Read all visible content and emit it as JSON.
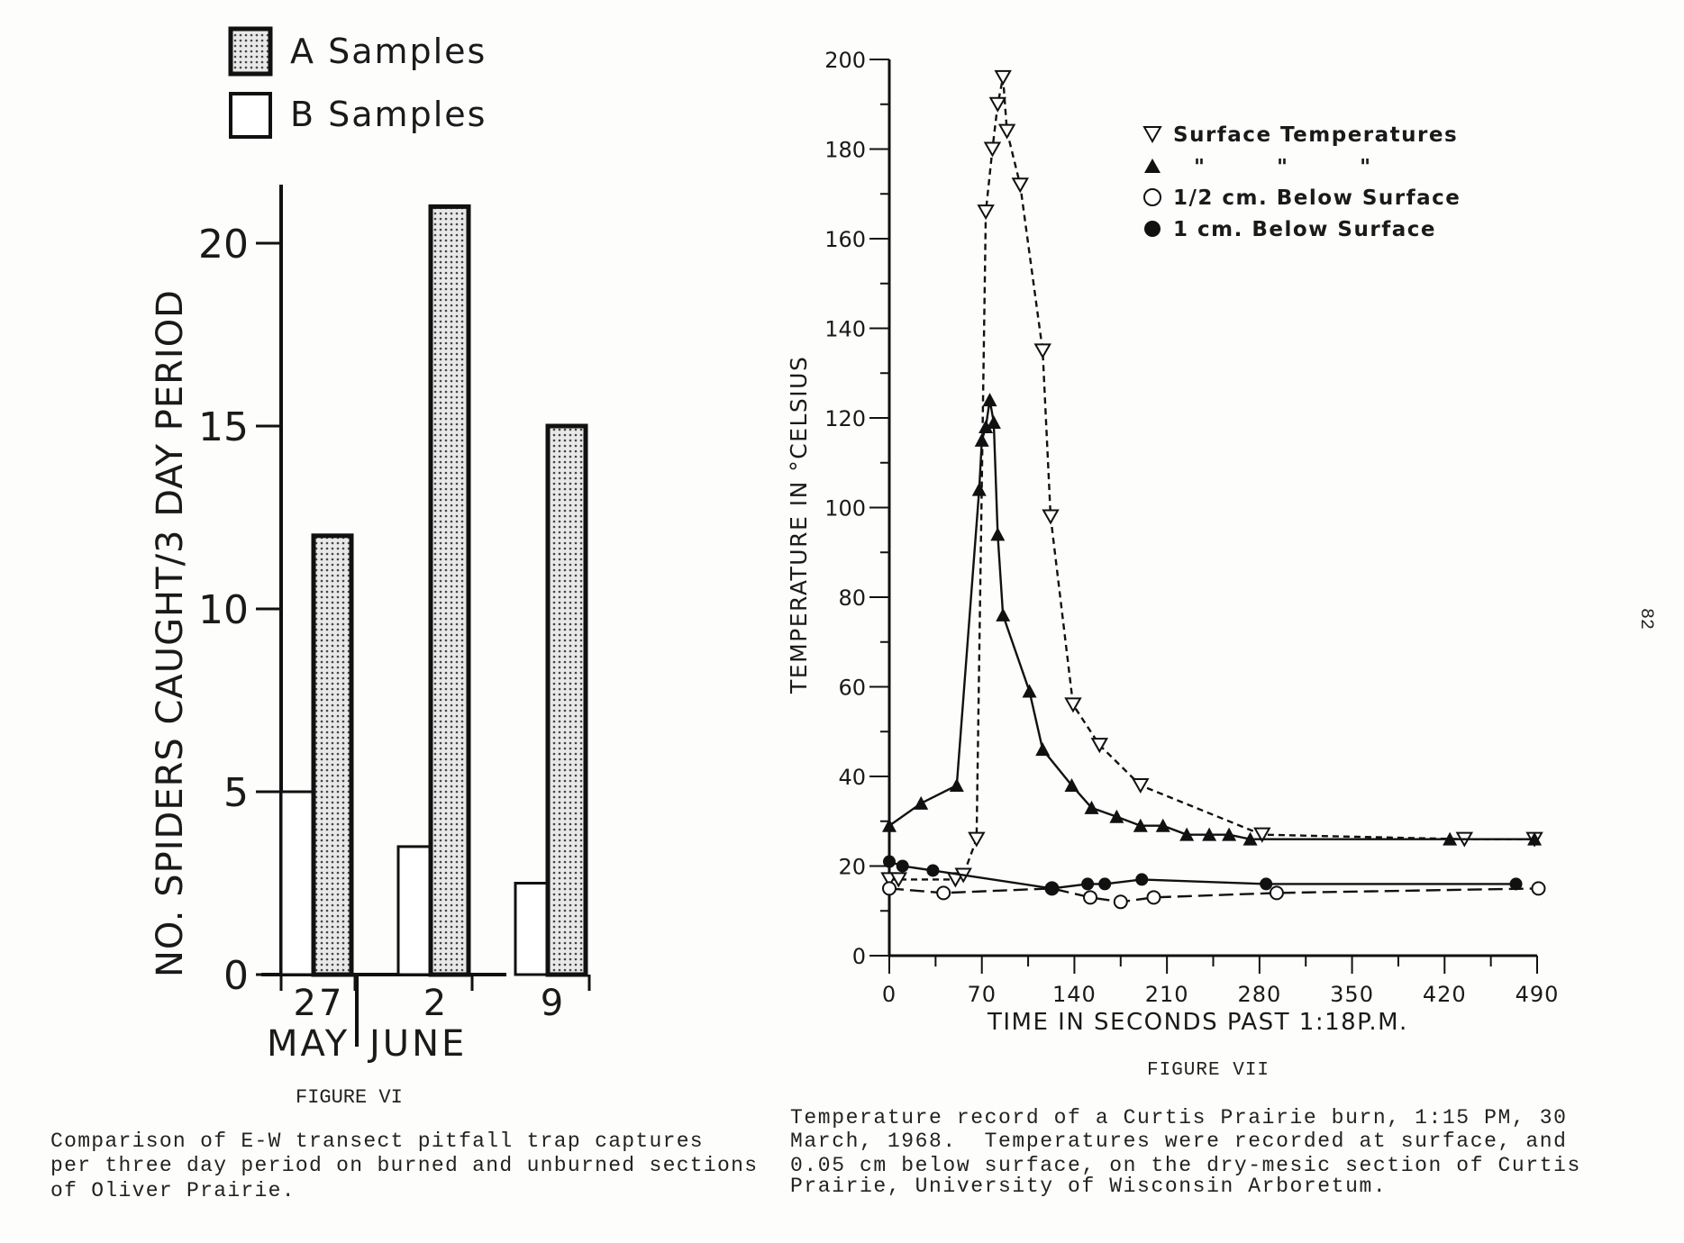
{
  "page_number": "82",
  "chart_data": [
    {
      "type": "bar",
      "figure_label": "FIGURE VI",
      "caption": [
        "Comparison of E-W transect pitfall trap captures",
        "per three day period on burned and unburned sections",
        "of Oliver Prairie."
      ],
      "ylabel": "NO. SPIDERS CAUGHT/3 DAY PERIOD",
      "ylim": [
        0,
        22
      ],
      "yticks": [
        0,
        5,
        10,
        15,
        20
      ],
      "categories": [
        "27",
        "2",
        "9"
      ],
      "month_labels": [
        "MAY",
        "JUNE"
      ],
      "series": [
        {
          "name": "A Samples",
          "pattern": "stippled",
          "values": [
            12,
            21,
            15
          ]
        },
        {
          "name": "B Samples",
          "pattern": "open",
          "values": [
            5,
            3.5,
            2.5
          ]
        }
      ],
      "legend": [
        "A Samples",
        "B Samples"
      ],
      "legend_position": "top"
    },
    {
      "type": "line",
      "figure_label": "FIGURE VII",
      "caption": [
        "Temperature record of a Curtis Prairie burn, 1:15 PM, 30",
        "March, 1968.  Temperatures were recorded at surface, and",
        "0.05 cm below surface, on the dry-mesic section of Curtis",
        "Prairie, University of Wisconsin Arboretum."
      ],
      "xlabel": "TIME IN SECONDS PAST 1:18P.M.",
      "ylabel": "TEMPERATURE IN °CELSIUS",
      "xlim": [
        0,
        490
      ],
      "ylim": [
        0,
        200
      ],
      "xticks": [
        0,
        70,
        140,
        210,
        280,
        350,
        420,
        490
      ],
      "yticks": [
        0,
        20,
        40,
        60,
        80,
        100,
        120,
        140,
        160,
        180,
        200
      ],
      "legend_position": "top-right",
      "legend": [
        "Surface Temperatures",
        "\"          \"          \"",
        "1/2 cm. Below Surface",
        "1 cm. Below Surface"
      ],
      "series": [
        {
          "name": "Surface Temperatures",
          "marker": "open-triangle-down",
          "line": "dashed",
          "x": [
            0,
            7,
            50,
            56,
            66,
            73,
            78,
            82,
            86,
            89,
            99,
            116,
            122,
            139,
            159,
            190,
            282,
            435,
            488
          ],
          "y": [
            17,
            17,
            17,
            18,
            26,
            166,
            180,
            190,
            196,
            184,
            172,
            135,
            98,
            56,
            47,
            38,
            27,
            26,
            26
          ]
        },
        {
          "name": "Surface Temperatures (2)",
          "marker": "filled-triangle-up",
          "line": "solid",
          "x": [
            0,
            24,
            51,
            68,
            70,
            73,
            76,
            79,
            82,
            86,
            106,
            116,
            138,
            153,
            172,
            190,
            207,
            225,
            242,
            257,
            273,
            424,
            488
          ],
          "y": [
            29,
            34,
            38,
            104,
            115,
            118,
            124,
            119,
            94,
            76,
            59,
            46,
            38,
            33,
            31,
            29,
            29,
            27,
            27,
            27,
            26,
            26,
            26
          ]
        },
        {
          "name": "1/2 cm. Below Surface",
          "marker": "open-circle",
          "line": "dashed",
          "x": [
            0,
            41,
            123,
            152,
            175,
            200,
            293,
            491
          ],
          "y": [
            15,
            14,
            15,
            13,
            12,
            13,
            14,
            15
          ]
        },
        {
          "name": "1 cm. Below Surface",
          "marker": "filled-circle",
          "line": "solid",
          "x": [
            0,
            10,
            33,
            123,
            150,
            163,
            191,
            285,
            474
          ],
          "y": [
            21,
            20,
            19,
            15,
            16,
            16,
            17,
            16,
            16
          ]
        }
      ]
    }
  ]
}
